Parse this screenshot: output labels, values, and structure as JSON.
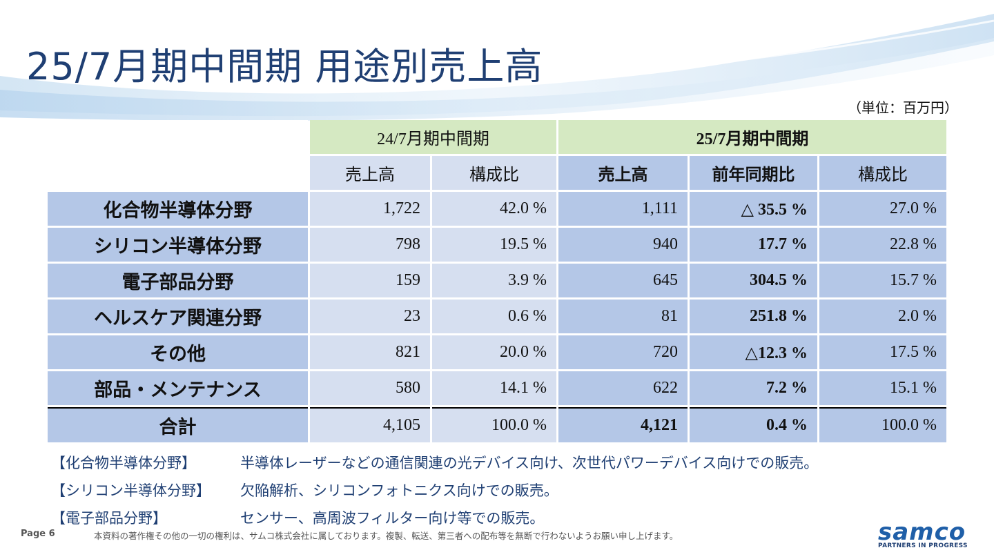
{
  "title": "25/7月期中間期 用途別売上高",
  "unit": "（単位：百万円）",
  "periods": {
    "prev": "24/7月期中間期",
    "curr": "25/7月期中間期"
  },
  "subheaders": {
    "prev_sales": "売上高",
    "prev_ratio": "構成比",
    "curr_sales": "売上高",
    "curr_yoy": "前年同期比",
    "curr_ratio": "構成比"
  },
  "rows": [
    {
      "label": "化合物半導体分野",
      "prev_sales": "1,722",
      "prev_ratio": "42.0 %",
      "curr_sales": "1,111",
      "yoy": "△ 35.5 %",
      "curr_ratio": "27.0 %"
    },
    {
      "label": "シリコン半導体分野",
      "prev_sales": "798",
      "prev_ratio": "19.5 %",
      "curr_sales": "940",
      "yoy": "17.7 %",
      "curr_ratio": "22.8 %"
    },
    {
      "label": "電子部品分野",
      "prev_sales": "159",
      "prev_ratio": "3.9 %",
      "curr_sales": "645",
      "yoy": "304.5 %",
      "curr_ratio": "15.7 %"
    },
    {
      "label": "ヘルスケア関連分野",
      "prev_sales": "23",
      "prev_ratio": "0.6 %",
      "curr_sales": "81",
      "yoy": "251.8 %",
      "curr_ratio": "2.0 %"
    },
    {
      "label": "その他",
      "prev_sales": "821",
      "prev_ratio": "20.0 %",
      "curr_sales": "720",
      "yoy": "△12.3 %",
      "curr_ratio": "17.5 %"
    },
    {
      "label": "部品・メンテナンス",
      "prev_sales": "580",
      "prev_ratio": "14.1 %",
      "curr_sales": "622",
      "yoy": "7.2 %",
      "curr_ratio": "15.1 %"
    }
  ],
  "total": {
    "label": "合計",
    "prev_sales": "4,105",
    "prev_ratio": "100.0 %",
    "curr_sales": "4,121",
    "yoy": "0.4 %",
    "curr_ratio": "100.0 %"
  },
  "notes": [
    {
      "key": "【化合物半導体分野】",
      "text": "半導体レーザーなどの通信関連の光デバイス向け、次世代パワーデバイス向けでの販売。"
    },
    {
      "key": "【シリコン半導体分野】",
      "text": "欠陥解析、シリコンフォトニクス向けでの販売。"
    },
    {
      "key": "【電子部品分野】",
      "text": "センサー、高周波フィルター向け等での販売。"
    }
  ],
  "footer": {
    "page": "Page 6",
    "copyright": "本資料の著作権その他の一切の権利は、サムコ株式会社に属しております。複製、転送、第三者への配布等を無断で行わないようお願い申し上げます。"
  },
  "logo": {
    "word": "samco",
    "tagline": "PARTNERS IN PROGRESS"
  },
  "colors": {
    "title": "#1f3f73",
    "header_green": "#d5e9c2",
    "cell_light": "#d6dff0",
    "cell_dark": "#b4c7e7",
    "brand": "#1f5fa8"
  }
}
